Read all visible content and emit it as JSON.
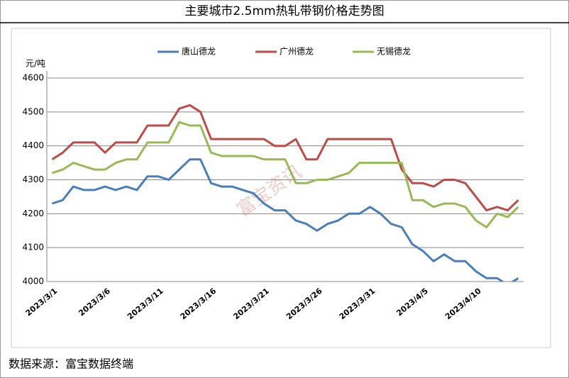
{
  "chart_data": {
    "type": "line",
    "title": "主要城市2.5mm热轧带钢价格走势图",
    "y_label": "元/吨",
    "source": "数据来源：富宝数据终端",
    "watermark": "富宝资讯",
    "categories": [
      "2023/3/1",
      null,
      null,
      null,
      null,
      "2023/3/6",
      null,
      null,
      null,
      null,
      "2023/3/11",
      null,
      null,
      null,
      null,
      "2023/3/16",
      null,
      null,
      null,
      null,
      "2023/3/21",
      null,
      null,
      null,
      null,
      "2023/3/26",
      null,
      null,
      null,
      null,
      "2023/3/31",
      null,
      null,
      null,
      null,
      "2023/4/5",
      null,
      null,
      null,
      null,
      "2023/4/10",
      null,
      null,
      null,
      null
    ],
    "series": [
      {
        "name": "唐山德龙",
        "color": "#4a7ebb",
        "values": [
          4230,
          4240,
          4280,
          4270,
          4270,
          4280,
          4270,
          4280,
          4270,
          4310,
          4310,
          4300,
          4330,
          4360,
          4360,
          4290,
          4280,
          4280,
          4270,
          4260,
          4230,
          4210,
          4210,
          4180,
          4170,
          4150,
          4170,
          4180,
          4200,
          4200,
          4220,
          4200,
          4170,
          4160,
          4110,
          4090,
          4060,
          4080,
          4060,
          4060,
          4030,
          4010,
          4010,
          3990,
          4010
        ]
      },
      {
        "name": "广州德龙",
        "color": "#be4b48",
        "values": [
          4360,
          4380,
          4410,
          4410,
          4410,
          4380,
          4410,
          4410,
          4410,
          4460,
          4460,
          4460,
          4510,
          4520,
          4500,
          4420,
          4420,
          4420,
          4420,
          4420,
          4420,
          4400,
          4400,
          4420,
          4360,
          4360,
          4420,
          4420,
          4420,
          4420,
          4420,
          4420,
          4420,
          4330,
          4290,
          4290,
          4280,
          4300,
          4300,
          4290,
          4250,
          4210,
          4220,
          4210,
          4240
        ]
      },
      {
        "name": "无锡德龙",
        "color": "#98b954",
        "values": [
          4320,
          4330,
          4350,
          4340,
          4330,
          4330,
          4350,
          4360,
          4360,
          4410,
          4410,
          4410,
          4470,
          4460,
          4460,
          4380,
          4370,
          4370,
          4370,
          4370,
          4360,
          4360,
          4360,
          4290,
          4290,
          4300,
          4300,
          4310,
          4320,
          4350,
          4350,
          4350,
          4350,
          4350,
          4240,
          4240,
          4220,
          4230,
          4230,
          4220,
          4180,
          4160,
          4200,
          4190,
          4220
        ]
      }
    ],
    "ylim": [
      4000,
      4600
    ],
    "yticks": [
      4000,
      4100,
      4200,
      4300,
      4400,
      4500,
      4600
    ],
    "grid": true
  }
}
